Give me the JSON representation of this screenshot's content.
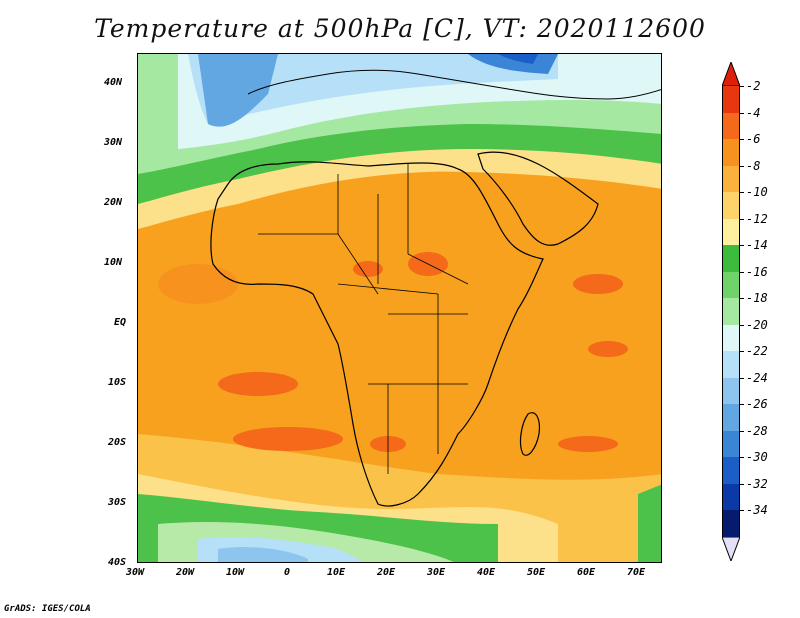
{
  "title": "Temperature at 500hPa [C], VT: 2020112600",
  "credit": "GrADS: IGES/COLA",
  "map": {
    "lon_ticks": [
      "30W",
      "20W",
      "10W",
      "0",
      "10E",
      "20E",
      "30E",
      "40E",
      "50E",
      "60E",
      "70E"
    ],
    "lat_ticks": [
      "40N",
      "30N",
      "20N",
      "10N",
      "EQ",
      "10S",
      "20S",
      "30S",
      "40S"
    ]
  },
  "colorbar": {
    "labels": [
      "-2",
      "-4",
      "-6",
      "-8",
      "-10",
      "-12",
      "-14",
      "-16",
      "-18",
      "-20",
      "-22",
      "-24",
      "-26",
      "-28",
      "-30",
      "-32",
      "-34"
    ],
    "colors": [
      "#e8370f",
      "#f4691a",
      "#f8921f",
      "#fbb13e",
      "#fdd36a",
      "#fff0a0",
      "#3cbb3c",
      "#6fd36a",
      "#a5e8a2",
      "#dff7f7",
      "#b6e0f7",
      "#8ec5ee",
      "#62a6e2",
      "#3a85d6",
      "#1c5ec7",
      "#0b3aa6",
      "#061a6e"
    ],
    "arrow_top": "#e01f0a",
    "arrow_bottom": "#e6e0f7"
  }
}
